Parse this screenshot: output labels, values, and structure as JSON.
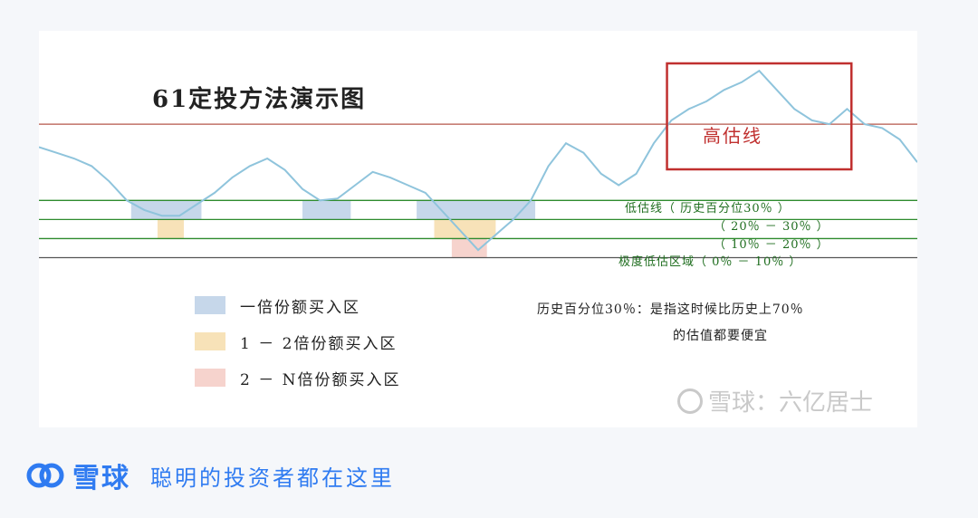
{
  "chart_data": {
    "type": "line",
    "title": "61定投方法演示图",
    "high_label": "高估线",
    "band_labels": [
      "低估线（ 历史百分位30％ ）",
      "（ 20％ － 30％ ）",
      "（ 10％ － 20％ ）",
      "极度低估区域（ 0％ － 10％ ）"
    ],
    "legend": [
      {
        "label": "一倍份额买入区",
        "color": "#c6d7ea"
      },
      {
        "label": "1 － 2倍份额买入区",
        "color": "#f7e2b8"
      },
      {
        "label": "2 － N倍份额买入区",
        "color": "#f6d3cd"
      }
    ],
    "note_lines": [
      "历史百分位30％：是指这时候比历史上70％",
      "的估值都要便宜"
    ],
    "x_range": [
      0,
      100
    ],
    "y_range": [
      -5,
      100
    ],
    "reference_lines": [
      {
        "name": "高估线",
        "value": 70,
        "color": "#b5574a"
      },
      {
        "name": "低估线",
        "value": 30,
        "color": "#2e8b2e"
      },
      {
        "name": "20%",
        "value": 20,
        "color": "#2e8b2e"
      },
      {
        "name": "10%",
        "value": 10,
        "color": "#2e8b2e"
      },
      {
        "name": "0%",
        "value": 0,
        "color": "#555555"
      }
    ],
    "zones": [
      {
        "type": "1x",
        "x0": 10.5,
        "x1": 18.5
      },
      {
        "type": "1x",
        "x0": 30,
        "x1": 35.5
      },
      {
        "type": "1x",
        "x0": 43,
        "x1": 56.5
      },
      {
        "type": "2x",
        "x0": 13.5,
        "x1": 16.5
      },
      {
        "type": "2x",
        "x0": 45,
        "x1": 52
      },
      {
        "type": "nx",
        "x0": 47,
        "x1": 51
      }
    ],
    "series": [
      {
        "x": [
          0,
          2,
          4,
          6,
          8,
          10,
          12,
          14,
          16,
          18,
          20,
          22,
          24,
          26,
          28,
          30,
          32,
          34,
          36,
          38,
          40,
          42,
          44,
          46,
          48,
          50,
          52,
          54,
          56,
          58,
          60,
          62,
          64,
          66,
          68,
          70,
          72,
          74,
          76,
          78,
          80,
          82,
          84,
          86,
          88,
          90,
          92,
          94,
          96,
          98,
          100
        ],
        "values": [
          58,
          55,
          52,
          48,
          40,
          30,
          25,
          22,
          22,
          28,
          34,
          42,
          48,
          52,
          46,
          36,
          30,
          31,
          38,
          45,
          42,
          38,
          34,
          24,
          14,
          4,
          12,
          20,
          30,
          48,
          60,
          55,
          44,
          38,
          44,
          60,
          72,
          78,
          82,
          88,
          92,
          98,
          88,
          78,
          72,
          70,
          78,
          70,
          68,
          62,
          50
        ]
      }
    ]
  },
  "watermark": "雪球：六亿居士",
  "footer": {
    "brand": "雪球",
    "slogan": "聪明的投资者都在这里"
  }
}
